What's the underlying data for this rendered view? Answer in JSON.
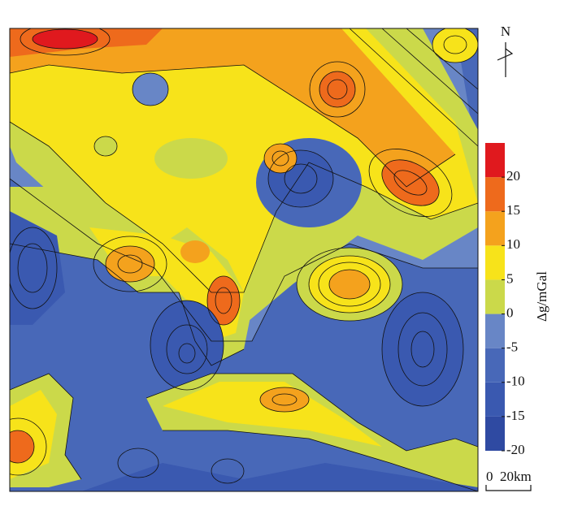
{
  "north_label": "N",
  "legend": {
    "title": "Δg/mGal",
    "lim": [
      -20,
      25
    ],
    "ticks": [
      -20,
      -15,
      -10,
      -5,
      0,
      5,
      10,
      15,
      20
    ],
    "band_edges": [
      -20,
      -15,
      -10,
      -5,
      0,
      5,
      10,
      15,
      20,
      25
    ],
    "colors": [
      "#2f4aa2",
      "#3a59b0",
      "#4868b8",
      "#6886c6",
      "#cbd94a",
      "#f7e31a",
      "#f4a21d",
      "#ee6a1c",
      "#e0191e"
    ]
  },
  "scale_bar": {
    "start_label": "0",
    "end_label": "20km"
  }
}
